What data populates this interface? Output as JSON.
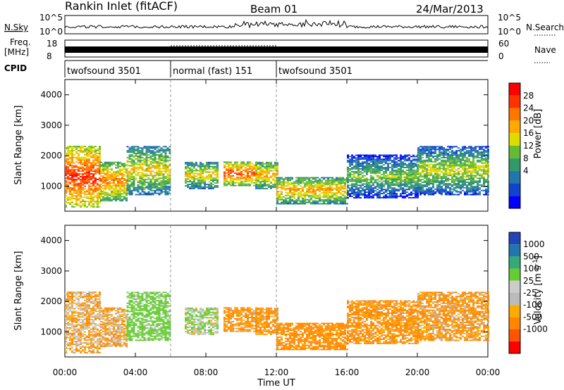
{
  "header": {
    "title": "Rankin Inlet (fitACF)",
    "beam": "Beam 01",
    "date": "24/Mar/2013"
  },
  "panels": {
    "nsky_label": "N.Sky",
    "nsky_ticks": [
      "10^5",
      "10^0"
    ],
    "nsearch_label": "N.Search",
    "nsearch_ticks": [
      "10^5",
      "10^0"
    ],
    "freq_label": "Freq.",
    "freq_unit": "[MHz]",
    "freq_ticks": [
      "18",
      "8"
    ],
    "nave_label": "Nave",
    "nave_ticks": [
      "60",
      "0"
    ],
    "cpid_label": "CPID",
    "cpid_segments": [
      {
        "label": "twofsound 3501",
        "start": 0,
        "end": 6
      },
      {
        "label": "normal (fast) 151",
        "start": 6,
        "end": 12
      },
      {
        "label": "twofsound 3501",
        "start": 12,
        "end": 24
      }
    ]
  },
  "colorbars": {
    "power": {
      "label": "Power [dB]",
      "ticks": [
        "28",
        "24",
        "20",
        "16",
        "12",
        "8",
        "4"
      ],
      "colors": [
        "#ff0000",
        "#ff3300",
        "#ff7700",
        "#ffaa00",
        "#dddd00",
        "#66bb33",
        "#339966",
        "#2277aa",
        "#1144cc",
        "#0000ff"
      ]
    },
    "velocity": {
      "label": "Velocity [m s",
      "label_sup": "-1",
      "label_end": "]",
      "ticks": [
        "1000",
        "500",
        "100",
        "25",
        "-25",
        "-100",
        "-500",
        "-1000"
      ],
      "colors": [
        "#2244bb",
        "#2277aa",
        "#33aa77",
        "#66cc33",
        "#cccccc",
        "#bbbbbb",
        "#ffaa00",
        "#ff8800",
        "#ff5500",
        "#ff0000"
      ]
    }
  },
  "axes": {
    "ylabel": "Slant Range [km]",
    "yticks": [
      "4000",
      "3000",
      "2000",
      "1000"
    ],
    "xlabel": "Time UT",
    "xticks": [
      "00:00",
      "04:00",
      "08:00",
      "12:00",
      "16:00",
      "20:00",
      "00:00"
    ]
  },
  "chart_data": {
    "type": "heatmap",
    "title": "Rankin Inlet (fitACF)",
    "xlabel": "Time UT",
    "ylabel": "Slant Range [km]",
    "x_range_hours": [
      0,
      24
    ],
    "y_range_km": [
      180,
      4500
    ],
    "power_colorbar_db": [
      4,
      8,
      12,
      16,
      20,
      24,
      28
    ],
    "velocity_colorbar_ms": [
      -1000,
      -500,
      -100,
      -25,
      25,
      100,
      500,
      1000
    ],
    "echo_bands": [
      {
        "start_h": 0.0,
        "end_h": 2.0,
        "range_low_km": 300,
        "range_high_km": 2300,
        "power_db": 28,
        "velocity_ms": -50
      },
      {
        "start_h": 2.0,
        "end_h": 3.5,
        "range_low_km": 500,
        "range_high_km": 1800,
        "power_db": 24,
        "velocity_ms": -60
      },
      {
        "start_h": 3.5,
        "end_h": 6.0,
        "range_low_km": 700,
        "range_high_km": 2300,
        "power_db": 20,
        "velocity_ms": 200
      },
      {
        "start_h": 6.8,
        "end_h": 8.6,
        "range_low_km": 900,
        "range_high_km": 1800,
        "power_db": 20,
        "velocity_ms": 100
      },
      {
        "start_h": 9.0,
        "end_h": 10.8,
        "range_low_km": 1000,
        "range_high_km": 1800,
        "power_db": 26,
        "velocity_ms": -150
      },
      {
        "start_h": 10.8,
        "end_h": 12.0,
        "range_low_km": 900,
        "range_high_km": 1800,
        "power_db": 22,
        "velocity_ms": -150
      },
      {
        "start_h": 12.0,
        "end_h": 16.0,
        "range_low_km": 400,
        "range_high_km": 1300,
        "power_db": 22,
        "velocity_ms": -200
      },
      {
        "start_h": 16.0,
        "end_h": 20.0,
        "range_low_km": 600,
        "range_high_km": 2000,
        "power_db": 16,
        "velocity_ms": -150
      },
      {
        "start_h": 20.0,
        "end_h": 24.0,
        "range_low_km": 700,
        "range_high_km": 2300,
        "power_db": 18,
        "velocity_ms": -120
      }
    ]
  }
}
